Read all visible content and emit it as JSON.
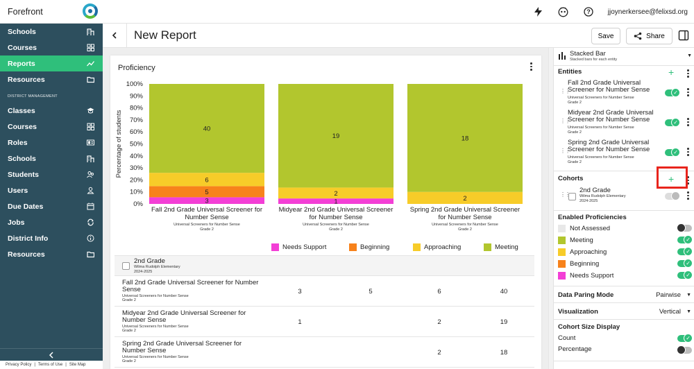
{
  "app": {
    "brand": "Forefront",
    "user_email": "jjoynerkersee@felixsd.org"
  },
  "sidebar": {
    "top_items": [
      {
        "label": "Schools",
        "icon": "building-icon"
      },
      {
        "label": "Courses",
        "icon": "grid-icon"
      },
      {
        "label": "Reports",
        "icon": "trend-icon",
        "active": true
      },
      {
        "label": "Resources",
        "icon": "folder-icon"
      }
    ],
    "section_label": "DISTRICT MANAGEMENT",
    "district_items": [
      {
        "label": "Classes",
        "icon": "graduation-cap-icon"
      },
      {
        "label": "Courses",
        "icon": "grid-icon"
      },
      {
        "label": "Roles",
        "icon": "id-card-icon"
      },
      {
        "label": "Schools",
        "icon": "building-icon"
      },
      {
        "label": "Students",
        "icon": "students-icon"
      },
      {
        "label": "Users",
        "icon": "user-icon"
      },
      {
        "label": "Due Dates",
        "icon": "calendar-icon"
      },
      {
        "label": "Jobs",
        "icon": "sync-icon"
      },
      {
        "label": "District Info",
        "icon": "info-icon"
      },
      {
        "label": "Resources",
        "icon": "folder-icon"
      }
    ],
    "footer": {
      "privacy": "Privacy Policy",
      "terms": "Terms of Use",
      "sitemap": "Site Map"
    }
  },
  "header": {
    "title": "New Report",
    "save": "Save",
    "share": "Share"
  },
  "card": {
    "title": "Proficiency"
  },
  "chart_data": {
    "type": "bar",
    "stacked": true,
    "normalized": true,
    "ylabel": "Percentage of students",
    "yticks": [
      "0%",
      "10%",
      "20%",
      "30%",
      "40%",
      "50%",
      "60%",
      "70%",
      "80%",
      "90%",
      "100%"
    ],
    "categories": [
      {
        "title": "Fall 2nd Grade Universal Screener for Number Sense",
        "sub1": "Universal Screeners for Number Sense",
        "sub2": "Grade 2"
      },
      {
        "title": "Midyear 2nd Grade Universal Screener for Number Sense",
        "sub1": "Universal Screeners for Number Sense",
        "sub2": "Grade 2"
      },
      {
        "title": "Spring 2nd Grade Universal Screener for Number Sense",
        "sub1": "Universal Screeners for Number Sense",
        "sub2": "Grade 2"
      }
    ],
    "series": [
      {
        "name": "Needs Support",
        "color": "#f33fd6",
        "values": [
          3,
          1,
          0
        ]
      },
      {
        "name": "Beginning",
        "color": "#f7821b",
        "values": [
          5,
          0,
          0
        ]
      },
      {
        "name": "Approaching",
        "color": "#f7cc29",
        "values": [
          6,
          2,
          2
        ]
      },
      {
        "name": "Meeting",
        "color": "#b2c62e",
        "values": [
          40,
          19,
          18
        ]
      }
    ]
  },
  "table": {
    "cohort": {
      "name": "2nd Grade",
      "school": "Wilma Rudolph Elementary",
      "year": "2024-2025"
    },
    "rows": [
      {
        "title": "Fall 2nd Grade Universal Screener for Number Sense",
        "sub1": "Universal Screeners for Number Sense",
        "sub2": "Grade 2",
        "values": [
          "3",
          "5",
          "6",
          "40"
        ]
      },
      {
        "title": "Midyear 2nd Grade Universal Screener for Number Sense",
        "sub1": "Universal Screeners for Number Sense",
        "sub2": "Grade 2",
        "values": [
          "1",
          "",
          "2",
          "19"
        ]
      },
      {
        "title": "Spring 2nd Grade Universal Screener for Number Sense",
        "sub1": "Universal Screeners for Number Sense",
        "sub2": "Grade 2",
        "values": [
          "",
          "",
          "2",
          "18"
        ]
      }
    ]
  },
  "panel": {
    "viz": {
      "title": "Stacked Bar",
      "subtitle": "Stacked bars for each entity"
    },
    "entities_label": "Entities",
    "entities": [
      {
        "title": "Fall 2nd Grade Universal Screener for Number Sense",
        "sub1": "Universal Screeners for Number Sense",
        "sub2": "Grade 2"
      },
      {
        "title": "Midyear 2nd Grade Universal Screener for Number Sense",
        "sub1": "Universal Screeners for Number Sense",
        "sub2": "Grade 2"
      },
      {
        "title": "Spring 2nd Grade Universal Screener for Number Sense",
        "sub1": "Universal Screeners for Number Sense",
        "sub2": "Grade 2"
      }
    ],
    "cohorts_label": "Cohorts",
    "cohort": {
      "name": "2nd Grade",
      "school": "Wilma Rudolph Elementary",
      "year": "2024-2025"
    },
    "proficiencies_label": "Enabled Proficiencies",
    "proficiencies": [
      {
        "label": "Not Assessed",
        "color": "#e8e8e8",
        "on": false
      },
      {
        "label": "Meeting",
        "color": "#b2c62e",
        "on": true
      },
      {
        "label": "Approaching",
        "color": "#f7cc29",
        "on": true
      },
      {
        "label": "Beginning",
        "color": "#f7821b",
        "on": true
      },
      {
        "label": "Needs Support",
        "color": "#f33fd6",
        "on": true
      }
    ],
    "pairing_label": "Data Paring Mode",
    "pairing_value": "Pairwise",
    "visualization_label": "Visualization",
    "visualization_value": "Vertical",
    "cohort_size_label": "Cohort Size Display",
    "count_label": "Count",
    "percentage_label": "Percentage"
  }
}
